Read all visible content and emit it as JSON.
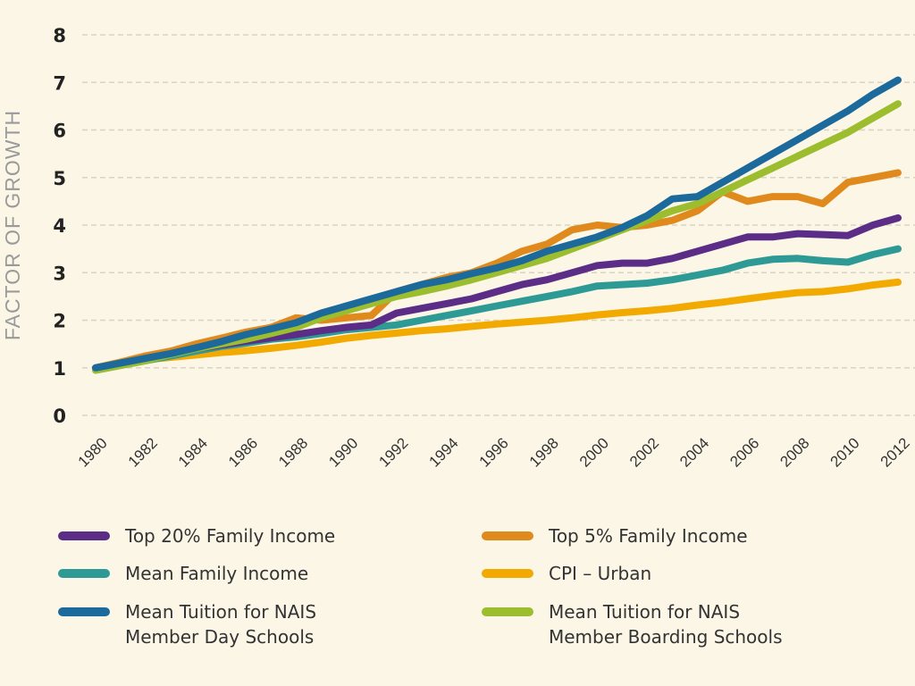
{
  "chart_data": {
    "type": "line",
    "title": "",
    "xlabel": "",
    "ylabel": "FACTOR OF GROWTH",
    "ylim": [
      0,
      8
    ],
    "yticks": [
      "0",
      "1",
      "2",
      "3",
      "4",
      "5",
      "6",
      "7",
      "8"
    ],
    "xlim": [
      1980,
      2012
    ],
    "xticks": [
      "1980",
      "1982",
      "1984",
      "1986",
      "1988",
      "1990",
      "1992",
      "1994",
      "1996",
      "1998",
      "2000",
      "2002",
      "2004",
      "2006",
      "2008",
      "2010",
      "2012"
    ],
    "grid": true,
    "legend_placement": "bottom",
    "x": [
      1980,
      1981,
      1982,
      1983,
      1984,
      1985,
      1986,
      1987,
      1988,
      1989,
      1990,
      1991,
      1992,
      1993,
      1994,
      1995,
      1996,
      1997,
      1998,
      1999,
      2000,
      2001,
      2002,
      2003,
      2004,
      2005,
      2006,
      2007,
      2008,
      2009,
      2010,
      2011,
      2012
    ],
    "series": [
      {
        "name": "Top 20% Family Income",
        "color": "#5b2d86",
        "values": [
          1.0,
          1.1,
          1.2,
          1.3,
          1.4,
          1.48,
          1.56,
          1.63,
          1.7,
          1.78,
          1.85,
          1.9,
          2.15,
          2.25,
          2.35,
          2.45,
          2.6,
          2.75,
          2.85,
          3.0,
          3.15,
          3.2,
          3.2,
          3.3,
          3.45,
          3.6,
          3.75,
          3.75,
          3.82,
          3.8,
          3.78,
          4.0,
          4.15
        ]
      },
      {
        "name": "Top 5% Family Income",
        "color": "#e08a1e",
        "values": [
          1.0,
          1.12,
          1.25,
          1.35,
          1.5,
          1.62,
          1.75,
          1.85,
          2.05,
          2.0,
          2.05,
          2.1,
          2.6,
          2.75,
          2.9,
          3.0,
          3.2,
          3.45,
          3.6,
          3.9,
          4.0,
          3.95,
          4.0,
          4.1,
          4.3,
          4.7,
          4.5,
          4.6,
          4.6,
          4.45,
          4.9,
          5.0,
          5.1
        ]
      },
      {
        "name": "Mean Family Income",
        "color": "#2e9a96",
        "values": [
          0.95,
          1.05,
          1.15,
          1.25,
          1.35,
          1.45,
          1.52,
          1.6,
          1.65,
          1.72,
          1.8,
          1.85,
          1.9,
          2.0,
          2.1,
          2.2,
          2.3,
          2.4,
          2.5,
          2.6,
          2.72,
          2.75,
          2.78,
          2.85,
          2.95,
          3.05,
          3.2,
          3.28,
          3.3,
          3.25,
          3.22,
          3.38,
          3.5
        ]
      },
      {
        "name": "CPI – Urban",
        "color": "#f2a900",
        "values": [
          1.0,
          1.1,
          1.17,
          1.22,
          1.27,
          1.32,
          1.36,
          1.41,
          1.47,
          1.54,
          1.62,
          1.68,
          1.73,
          1.78,
          1.82,
          1.87,
          1.92,
          1.96,
          2.0,
          2.05,
          2.11,
          2.16,
          2.2,
          2.25,
          2.32,
          2.38,
          2.45,
          2.52,
          2.58,
          2.6,
          2.66,
          2.74,
          2.8
        ]
      },
      {
        "name": "Mean Tuition for NAIS Member Day Schools",
        "color": "#1c6a9c",
        "values": [
          1.0,
          1.1,
          1.2,
          1.3,
          1.42,
          1.55,
          1.7,
          1.82,
          1.95,
          2.15,
          2.3,
          2.45,
          2.6,
          2.75,
          2.85,
          2.98,
          3.1,
          3.25,
          3.45,
          3.6,
          3.75,
          3.95,
          4.2,
          4.55,
          4.6,
          4.9,
          5.2,
          5.5,
          5.8,
          6.1,
          6.4,
          6.75,
          7.05
        ]
      },
      {
        "name": "Mean Tuition for NAIS Member Boarding Schools",
        "color": "#9cbd2e",
        "values": [
          0.95,
          1.05,
          1.15,
          1.28,
          1.4,
          1.5,
          1.6,
          1.72,
          1.85,
          2.05,
          2.2,
          2.35,
          2.5,
          2.6,
          2.72,
          2.85,
          3.0,
          3.15,
          3.3,
          3.5,
          3.7,
          3.9,
          4.1,
          4.3,
          4.45,
          4.7,
          4.95,
          5.2,
          5.45,
          5.7,
          5.95,
          6.25,
          6.55
        ]
      }
    ]
  },
  "legend": [
    {
      "lines": [
        "Top 20% Family Income"
      ]
    },
    {
      "lines": [
        "Top 5% Family Income"
      ]
    },
    {
      "lines": [
        "Mean Family Income"
      ]
    },
    {
      "lines": [
        "CPI – Urban"
      ]
    },
    {
      "lines": [
        "Mean Tuition for NAIS",
        "Member Day Schools"
      ]
    },
    {
      "lines": [
        "Mean Tuition for NAIS",
        "Member Boarding Schools"
      ]
    }
  ]
}
